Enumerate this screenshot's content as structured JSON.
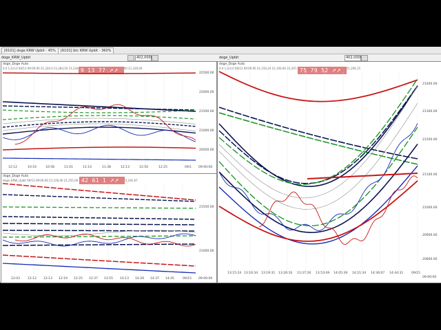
{
  "tabs": [
    {
      "label": "[6101] doge KRW Upbit - 45%"
    },
    {
      "label": "[6101] btc KRW Upbit - 360%"
    }
  ],
  "toolbar": {
    "left_label": "doge_KRW_Upbit",
    "left_field": "402,0000",
    "right_label": "doge_Upbit",
    "right_field": "402,0000"
  },
  "panels": [
    {
      "title": "doge_Doge Auto",
      "info": "0.0 1,0,0,0 06/13 09:00:00  21,320,0  21,284,50  21,234,00  20,700,00  21,007,00  21,086,00  21,320,00",
      "badge": [
        "9",
        "13",
        "77",
        "↗↗"
      ],
      "y_ticks": [
        "22500.00",
        "22000.00",
        "21500.00",
        "21000.00",
        "20500.00"
      ],
      "x_ticks": [
        "12:12",
        "10:16",
        "10:58",
        "11:01",
        "11:14",
        "11:38",
        "12:13",
        "12:50",
        "12:25",
        "09/1"
      ],
      "corner": "09:00:00"
    },
    {
      "title": "doge_Doge Auto",
      "info": "doge_KRW_Upbit 09/13 09:00:00  21,100,00  21,255,00  21,275,42  21,265,00  21,206,00  21,181,67",
      "badge": [
        "42",
        "61",
        "1",
        "↗↗"
      ],
      "y_ticks": [
        "21500.00",
        "21000.00"
      ],
      "x_ticks": [
        "12:03",
        "12:12",
        "12:13",
        "12:19",
        "12:25",
        "12:37",
        "13:55",
        "14:13",
        "14:29",
        "14:37",
        "14:45",
        "09/15"
      ],
      "corner": "09:00:00"
    },
    {
      "title": "doge_Doge Auto",
      "info": "0.0 1,0,0,0 06/13 09:00:00  21,150,24  21,100,00  21,207,65  21,120,00  21,161,64  21,206,02  21,206,15",
      "badge": [
        "75",
        "79",
        "52",
        "↗↗"
      ],
      "y_ticks": [
        "21400.00",
        "21300.00",
        "21200.00",
        "21100.00",
        "21000.00",
        "20900.00",
        "20800.00"
      ],
      "x_ticks": [
        "13:15:24",
        "13:16:34",
        "13:19:31",
        "13:26:16",
        "13:37:26",
        "13:53:49",
        "14:05:39",
        "14:21:34",
        "14:36:07",
        "14:44:31",
        "09/15"
      ],
      "corner": "09:00:00"
    }
  ],
  "colors": {
    "red": "#c81414",
    "dark_navy": "#0a1450",
    "blue": "#1428b4",
    "green": "#1e9628",
    "gray": "#8c8c8c",
    "badge": "#e08080"
  }
}
